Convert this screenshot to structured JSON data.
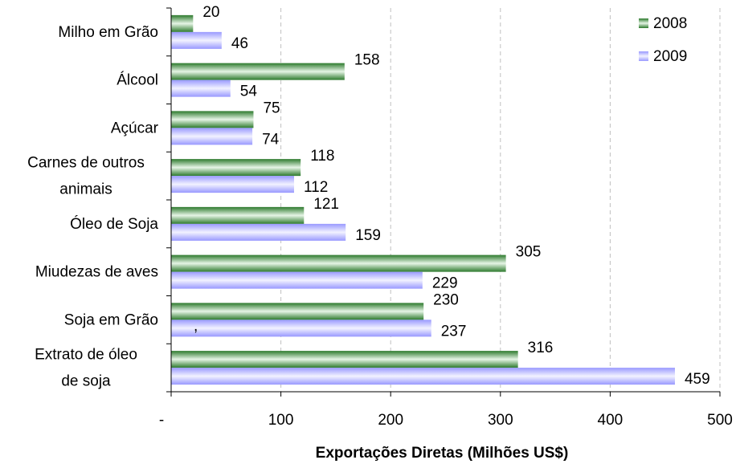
{
  "chart_data": {
    "type": "bar",
    "orientation": "horizontal",
    "categories": [
      [
        "Milho em Grão"
      ],
      [
        "Álcool"
      ],
      [
        "Açúcar"
      ],
      [
        "Carnes de outros",
        "animais"
      ],
      [
        "Óleo de Soja"
      ],
      [
        "Miudezas de aves"
      ],
      [
        "Soja em Grão"
      ],
      [
        "Extrato de óleo",
        "de soja"
      ]
    ],
    "series": [
      {
        "name": "2008",
        "color": "#339933",
        "values": [
          20,
          158,
          75,
          118,
          121,
          305,
          230,
          316
        ]
      },
      {
        "name": "2009",
        "color": "#9999ff",
        "values": [
          46,
          54,
          74,
          112,
          159,
          229,
          237,
          459
        ]
      }
    ],
    "x_ticks": [
      0,
      100,
      200,
      300,
      400,
      500
    ],
    "x_tick_labels": [
      "-",
      "100",
      "200",
      "300",
      "400",
      "500"
    ],
    "xlim": [
      0,
      500
    ],
    "xlabel": "Exportações Diretas (Milhões US$)",
    "ylabel": "",
    "title": "",
    "grid": "vertical-dashed",
    "legend": "top-right",
    "stray_mark": ","
  }
}
